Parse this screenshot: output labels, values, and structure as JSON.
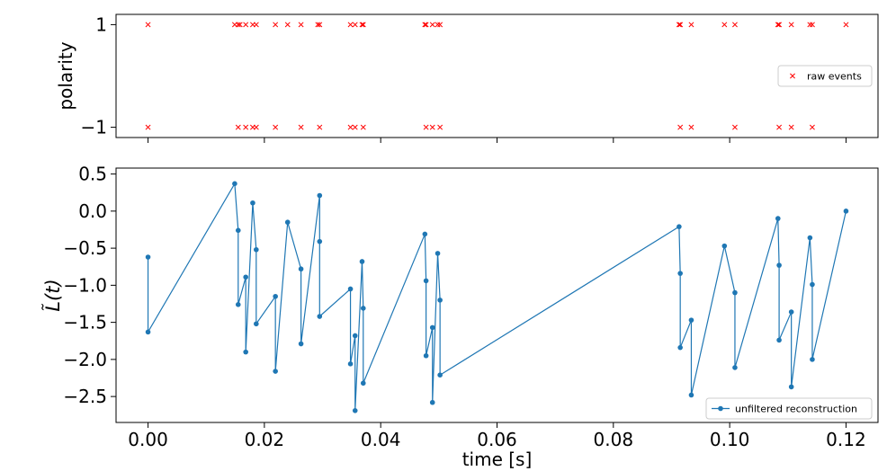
{
  "chart_data": [
    {
      "type": "scatter",
      "ylabel": "polarity",
      "xlabel": "",
      "xlim": [
        -0.0055,
        0.1255
      ],
      "ylim": [
        -1.2,
        1.2
      ],
      "yticks": [
        {
          "value": 1,
          "label": "1"
        },
        {
          "value": -1,
          "label": "−1"
        }
      ],
      "legend": {
        "position": "right",
        "label": "raw events"
      },
      "series": [
        {
          "name": "raw events",
          "color": "#ff0000",
          "marker": "x",
          "points": [
            [
              0.0,
              1
            ],
            [
              0.0,
              -1
            ],
            [
              0.0149,
              1
            ],
            [
              0.0155,
              1
            ],
            [
              0.0155,
              -1
            ],
            [
              0.0158,
              1
            ],
            [
              0.0168,
              1
            ],
            [
              0.0168,
              -1
            ],
            [
              0.018,
              1
            ],
            [
              0.018,
              -1
            ],
            [
              0.0186,
              1
            ],
            [
              0.0186,
              -1
            ],
            [
              0.0219,
              1
            ],
            [
              0.0219,
              -1
            ],
            [
              0.024,
              1
            ],
            [
              0.0263,
              1
            ],
            [
              0.0263,
              -1
            ],
            [
              0.0292,
              1
            ],
            [
              0.0295,
              1
            ],
            [
              0.0295,
              -1
            ],
            [
              0.0348,
              1
            ],
            [
              0.0348,
              -1
            ],
            [
              0.0356,
              1
            ],
            [
              0.0356,
              -1
            ],
            [
              0.0368,
              1
            ],
            [
              0.037,
              1
            ],
            [
              0.037,
              -1
            ],
            [
              0.0476,
              1
            ],
            [
              0.0478,
              1
            ],
            [
              0.0478,
              -1
            ],
            [
              0.0489,
              1
            ],
            [
              0.0489,
              -1
            ],
            [
              0.0498,
              1
            ],
            [
              0.0502,
              1
            ],
            [
              0.0502,
              -1
            ],
            [
              0.0913,
              1
            ],
            [
              0.0915,
              1
            ],
            [
              0.0915,
              -1
            ],
            [
              0.0934,
              1
            ],
            [
              0.0934,
              -1
            ],
            [
              0.0991,
              1
            ],
            [
              0.1009,
              1
            ],
            [
              0.1009,
              -1
            ],
            [
              0.1083,
              1
            ],
            [
              0.1085,
              1
            ],
            [
              0.1085,
              -1
            ],
            [
              0.1106,
              1
            ],
            [
              0.1106,
              -1
            ],
            [
              0.1138,
              1
            ],
            [
              0.1142,
              1
            ],
            [
              0.1142,
              -1
            ],
            [
              0.12,
              1
            ]
          ]
        }
      ]
    },
    {
      "type": "line",
      "ylabel": "L̃(t)",
      "xlabel": "time [s]",
      "xlim": [
        -0.0055,
        0.1255
      ],
      "ylim": [
        -2.85,
        0.58
      ],
      "yticks": [
        {
          "value": 0.5,
          "label": "0.5"
        },
        {
          "value": 0.0,
          "label": "0.0"
        },
        {
          "value": -0.5,
          "label": "−0.5"
        },
        {
          "value": -1.0,
          "label": "−1.0"
        },
        {
          "value": -1.5,
          "label": "−1.5"
        },
        {
          "value": -2.0,
          "label": "−2.0"
        },
        {
          "value": -2.5,
          "label": "−2.5"
        }
      ],
      "xticks": [
        {
          "value": 0.0,
          "label": "0.00"
        },
        {
          "value": 0.02,
          "label": "0.02"
        },
        {
          "value": 0.04,
          "label": "0.04"
        },
        {
          "value": 0.06,
          "label": "0.06"
        },
        {
          "value": 0.08,
          "label": "0.08"
        },
        {
          "value": 0.1,
          "label": "0.10"
        },
        {
          "value": 0.12,
          "label": "0.12"
        }
      ],
      "legend": {
        "position": "bottom-right",
        "label": "unfiltered reconstruction"
      },
      "series": [
        {
          "name": "unfiltered reconstruction",
          "color": "#1f77b4",
          "marker": "o",
          "points": [
            [
              0.0,
              -0.62
            ],
            [
              0.0,
              -1.63
            ],
            [
              0.0149,
              0.37
            ],
            [
              0.0155,
              -0.26
            ],
            [
              0.0155,
              -1.26
            ],
            [
              0.0168,
              -0.89
            ],
            [
              0.0168,
              -1.9
            ],
            [
              0.018,
              0.11
            ],
            [
              0.0186,
              -0.52
            ],
            [
              0.0186,
              -1.52
            ],
            [
              0.0219,
              -1.15
            ],
            [
              0.0219,
              -2.16
            ],
            [
              0.024,
              -0.15
            ],
            [
              0.0263,
              -0.78
            ],
            [
              0.0263,
              -1.79
            ],
            [
              0.0295,
              0.21
            ],
            [
              0.0295,
              -0.41
            ],
            [
              0.0295,
              -1.42
            ],
            [
              0.0348,
              -1.05
            ],
            [
              0.0348,
              -2.06
            ],
            [
              0.0356,
              -1.68
            ],
            [
              0.0356,
              -2.69
            ],
            [
              0.0368,
              -0.68
            ],
            [
              0.037,
              -1.31
            ],
            [
              0.037,
              -2.32
            ],
            [
              0.0476,
              -0.31
            ],
            [
              0.0478,
              -0.94
            ],
            [
              0.0478,
              -1.95
            ],
            [
              0.0489,
              -1.57
            ],
            [
              0.0489,
              -2.58
            ],
            [
              0.0498,
              -0.57
            ],
            [
              0.0502,
              -1.2
            ],
            [
              0.0502,
              -2.21
            ],
            [
              0.0913,
              -0.21
            ],
            [
              0.0915,
              -0.84
            ],
            [
              0.0915,
              -1.84
            ],
            [
              0.0934,
              -1.47
            ],
            [
              0.0934,
              -2.48
            ],
            [
              0.0991,
              -0.47
            ],
            [
              0.1009,
              -1.1
            ],
            [
              0.1009,
              -2.11
            ],
            [
              0.1083,
              -0.1
            ],
            [
              0.1085,
              -0.73
            ],
            [
              0.1085,
              -1.74
            ],
            [
              0.1106,
              -1.36
            ],
            [
              0.1106,
              -2.37
            ],
            [
              0.1138,
              -0.36
            ],
            [
              0.1142,
              -0.99
            ],
            [
              0.1142,
              -2.0
            ],
            [
              0.12,
              0.0
            ]
          ]
        }
      ]
    }
  ]
}
